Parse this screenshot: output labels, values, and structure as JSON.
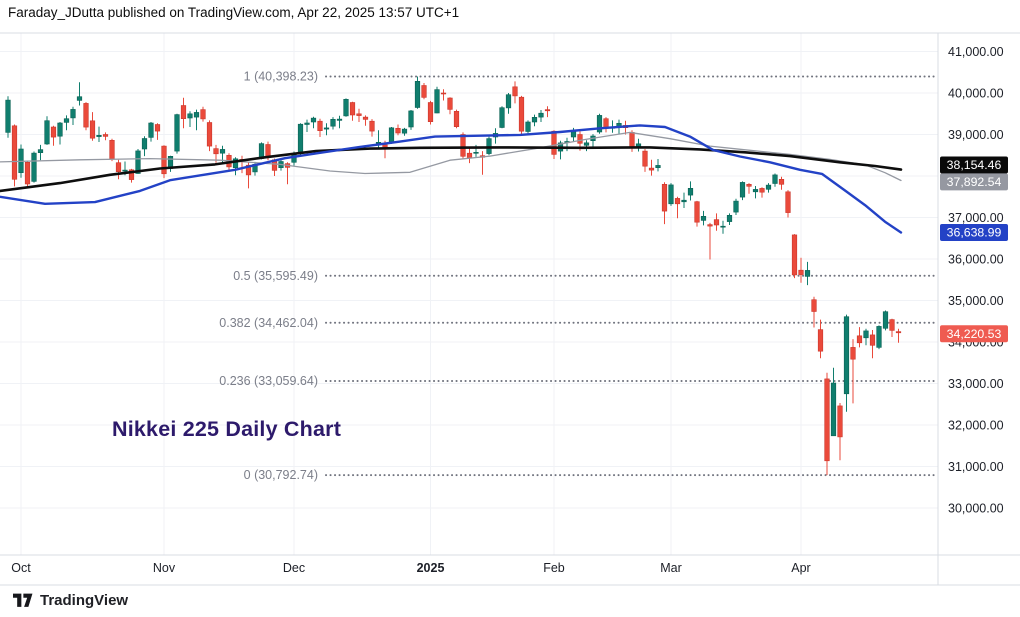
{
  "header": {
    "title": "Faraday_JDutta published on TradingView.com, Apr 22, 2025 13:57 UTC+1"
  },
  "annotation": {
    "title": "Nikkei 225 Daily Chart",
    "color": "#2d1a6b"
  },
  "footer": {
    "brand": "TradingView"
  },
  "chart_data": {
    "type": "candlestick",
    "title": "Nikkei 225 Daily Chart",
    "last_close": 34220.53,
    "axis": {
      "price_ticks": [
        {
          "value": 41000,
          "label": "41,000.00"
        },
        {
          "value": 40000,
          "label": "40,000.00"
        },
        {
          "value": 39000,
          "label": "39,000.00"
        },
        {
          "value": 38000,
          "label": "38,000.00"
        },
        {
          "value": 37000,
          "label": "37,000.00"
        },
        {
          "value": 36000,
          "label": "36,000.00"
        },
        {
          "value": 35000,
          "label": "35,000.00"
        },
        {
          "value": 34000,
          "label": "34,000.00"
        },
        {
          "value": 33000,
          "label": "33,000.00"
        },
        {
          "value": 32000,
          "label": "32,000.00"
        },
        {
          "value": 31000,
          "label": "31,000.00"
        },
        {
          "value": 30000,
          "label": "30,000.00"
        }
      ],
      "time_ticks": [
        {
          "label": "Oct",
          "index": 2,
          "bold": false
        },
        {
          "label": "Nov",
          "index": 24,
          "bold": false
        },
        {
          "label": "Dec",
          "index": 44,
          "bold": false
        },
        {
          "label": "2025",
          "index": 65,
          "bold": true
        },
        {
          "label": "Feb",
          "index": 84,
          "bold": false
        },
        {
          "label": "Mar",
          "index": 102,
          "bold": false
        },
        {
          "label": "Apr",
          "index": 122,
          "bold": false
        }
      ]
    },
    "fib_levels": [
      {
        "label": "1 (40,398.23)",
        "value": 40398.23
      },
      {
        "label": "0.5 (35,595.49)",
        "value": 35595.49
      },
      {
        "label": "0.382 (34,462.04)",
        "value": 34462.04
      },
      {
        "label": "0.236 (33,059.64)",
        "value": 33059.64
      },
      {
        "label": "0 (30,792.74)",
        "value": 30792.74
      }
    ],
    "badges": [
      {
        "label": "38,154.46",
        "value": 38154.46,
        "bg": "#0a0a0a"
      },
      {
        "label": "37,892.54",
        "value": 37892.54,
        "bg": "#9598a1"
      },
      {
        "label": "36,638.99",
        "value": 36638.99,
        "bg": "#2342c6"
      },
      {
        "label": "34,220.53",
        "value": 34220.53,
        "bg": "#ef5b51"
      }
    ],
    "moving_averages": [
      {
        "name": "sma-gray",
        "color": "#9599a2",
        "width": 1.3,
        "last_value": 37892.54,
        "points": [
          [
            0,
            38340
          ],
          [
            80,
            38390
          ],
          [
            150,
            38420
          ],
          [
            220,
            38380
          ],
          [
            280,
            38280
          ],
          [
            330,
            38120
          ],
          [
            365,
            38060
          ],
          [
            410,
            38090
          ],
          [
            450,
            38380
          ],
          [
            490,
            38480
          ],
          [
            540,
            38680
          ],
          [
            585,
            38880
          ],
          [
            630,
            39050
          ],
          [
            670,
            38900
          ],
          [
            710,
            38720
          ],
          [
            750,
            38620
          ],
          [
            790,
            38520
          ],
          [
            830,
            38400
          ],
          [
            865,
            38270
          ],
          [
            885,
            38080
          ],
          [
            901,
            37892.54
          ]
        ]
      },
      {
        "name": "sma-black",
        "color": "#0e0e0e",
        "width": 2.6,
        "last_value": 38154.46,
        "points": [
          [
            0,
            37640
          ],
          [
            60,
            37830
          ],
          [
            110,
            38030
          ],
          [
            160,
            38180
          ],
          [
            215,
            38280
          ],
          [
            265,
            38450
          ],
          [
            316,
            38600
          ],
          [
            370,
            38660
          ],
          [
            420,
            38680
          ],
          [
            500,
            38690
          ],
          [
            580,
            38680
          ],
          [
            650,
            38690
          ],
          [
            700,
            38640
          ],
          [
            745,
            38570
          ],
          [
            790,
            38480
          ],
          [
            840,
            38330
          ],
          [
            875,
            38240
          ],
          [
            901,
            38154.46
          ]
        ]
      },
      {
        "name": "sma-blue",
        "color": "#2342c6",
        "width": 2.4,
        "last_value": 36638.99,
        "points": [
          [
            0,
            37500
          ],
          [
            45,
            37330
          ],
          [
            95,
            37370
          ],
          [
            140,
            37640
          ],
          [
            170,
            37900
          ],
          [
            235,
            38150
          ],
          [
            285,
            38430
          ],
          [
            320,
            38560
          ],
          [
            360,
            38700
          ],
          [
            400,
            38830
          ],
          [
            435,
            38950
          ],
          [
            480,
            38970
          ],
          [
            520,
            38990
          ],
          [
            560,
            39060
          ],
          [
            600,
            39150
          ],
          [
            640,
            39220
          ],
          [
            665,
            39180
          ],
          [
            690,
            38950
          ],
          [
            713,
            38630
          ],
          [
            740,
            38470
          ],
          [
            770,
            38330
          ],
          [
            800,
            38150
          ],
          [
            822,
            38050
          ],
          [
            845,
            37650
          ],
          [
            865,
            37300
          ],
          [
            885,
            36900
          ],
          [
            901,
            36638.99
          ]
        ]
      }
    ],
    "candles": [
      [
        39050,
        39920,
        38920,
        39829
      ],
      [
        39210,
        39240,
        37750,
        37920
      ],
      [
        38080,
        38760,
        37960,
        38651
      ],
      [
        38330,
        38370,
        37730,
        37808
      ],
      [
        37870,
        38590,
        37840,
        38552
      ],
      [
        38560,
        38750,
        38380,
        38635
      ],
      [
        38770,
        39440,
        38750,
        39332
      ],
      [
        39180,
        39210,
        38730,
        38937
      ],
      [
        38960,
        39300,
        38760,
        39277
      ],
      [
        39290,
        39460,
        39100,
        39380
      ],
      [
        39400,
        39670,
        39230,
        39605
      ],
      [
        39820,
        40257,
        39700,
        39910
      ],
      [
        39750,
        39780,
        39100,
        39180
      ],
      [
        39330,
        39540,
        38850,
        38911
      ],
      [
        38950,
        39190,
        38820,
        38981
      ],
      [
        39000,
        39050,
        38860,
        38954
      ],
      [
        38860,
        38900,
        38360,
        38411
      ],
      [
        38320,
        38390,
        37920,
        38104
      ],
      [
        38130,
        38350,
        38020,
        38143
      ],
      [
        38150,
        38170,
        37840,
        37913
      ],
      [
        38060,
        38650,
        38050,
        38605
      ],
      [
        38650,
        38960,
        38480,
        38903
      ],
      [
        38930,
        39300,
        38830,
        39277
      ],
      [
        39240,
        39270,
        38870,
        39081
      ],
      [
        38720,
        38740,
        37950,
        38053
      ],
      [
        38180,
        38490,
        38100,
        38474
      ],
      [
        38600,
        39500,
        38540,
        39480
      ],
      [
        39700,
        39884,
        39150,
        39381
      ],
      [
        39400,
        39560,
        39180,
        39500
      ],
      [
        39420,
        39600,
        39100,
        39533
      ],
      [
        39600,
        39670,
        39310,
        39376
      ],
      [
        39290,
        39340,
        38600,
        38721
      ],
      [
        38660,
        38750,
        38320,
        38535
      ],
      [
        38550,
        38730,
        38280,
        38642
      ],
      [
        38500,
        38550,
        38120,
        38220
      ],
      [
        38200,
        38450,
        38020,
        38414
      ],
      [
        38400,
        38490,
        38070,
        38352
      ],
      [
        38260,
        38330,
        37700,
        38026
      ],
      [
        38100,
        38340,
        38010,
        38283
      ],
      [
        38420,
        38810,
        38400,
        38780
      ],
      [
        38760,
        38830,
        38380,
        38442
      ],
      [
        38390,
        38420,
        38000,
        38134
      ],
      [
        38200,
        38420,
        38130,
        38349
      ],
      [
        38300,
        38330,
        37800,
        38208
      ],
      [
        38330,
        38590,
        38250,
        38513
      ],
      [
        38580,
        39270,
        38480,
        39248
      ],
      [
        39240,
        39360,
        39060,
        39276
      ],
      [
        39300,
        39430,
        39150,
        39395
      ],
      [
        39320,
        39380,
        38940,
        39091
      ],
      [
        39130,
        39270,
        38980,
        39160
      ],
      [
        39200,
        39420,
        39120,
        39367
      ],
      [
        39340,
        39450,
        39150,
        39372
      ],
      [
        39450,
        39870,
        39430,
        39849
      ],
      [
        39770,
        39790,
        39330,
        39470
      ],
      [
        39500,
        39620,
        39300,
        39457
      ],
      [
        39420,
        39460,
        39210,
        39364
      ],
      [
        39320,
        39370,
        38950,
        39081
      ],
      [
        38800,
        39100,
        38660,
        38813
      ],
      [
        38750,
        38850,
        38430,
        38701
      ],
      [
        38800,
        39180,
        38770,
        39161
      ],
      [
        39150,
        39240,
        38980,
        39036
      ],
      [
        39030,
        39160,
        38970,
        39130
      ],
      [
        39180,
        39590,
        39110,
        39568
      ],
      [
        39650,
        40398.23,
        39620,
        40281
      ],
      [
        40180,
        40240,
        39850,
        39894
      ],
      [
        39770,
        39810,
        39240,
        39307
      ],
      [
        39520,
        40150,
        39510,
        40083
      ],
      [
        40000,
        40090,
        39820,
        39981
      ],
      [
        39880,
        39900,
        39490,
        39605
      ],
      [
        39560,
        39600,
        39150,
        39190
      ],
      [
        39000,
        39050,
        38400,
        38474
      ],
      [
        38550,
        38670,
        38310,
        38444
      ],
      [
        38550,
        38750,
        38460,
        38572
      ],
      [
        38490,
        38600,
        38030,
        38451
      ],
      [
        38540,
        38950,
        38500,
        38902
      ],
      [
        38940,
        39150,
        38780,
        39027
      ],
      [
        39170,
        39680,
        39150,
        39646
      ],
      [
        39640,
        40000,
        39500,
        39958
      ],
      [
        40150,
        40279,
        39750,
        39931
      ],
      [
        39900,
        39930,
        39000,
        39080
      ],
      [
        39070,
        39340,
        39020,
        39300
      ],
      [
        39300,
        39480,
        39200,
        39414
      ],
      [
        39420,
        39590,
        39300,
        39513
      ],
      [
        39600,
        39680,
        39420,
        39572
      ],
      [
        39080,
        39100,
        38410,
        38520
      ],
      [
        38600,
        38850,
        38400,
        38798
      ],
      [
        38830,
        38920,
        38600,
        38831
      ],
      [
        38940,
        39160,
        38820,
        39066
      ],
      [
        39000,
        39080,
        38610,
        38787
      ],
      [
        38740,
        38860,
        38600,
        38801
      ],
      [
        38850,
        39010,
        38710,
        38963
      ],
      [
        39060,
        39500,
        39020,
        39461
      ],
      [
        39380,
        39420,
        39050,
        39149
      ],
      [
        39150,
        39340,
        39040,
        39174
      ],
      [
        39190,
        39360,
        39000,
        39270
      ],
      [
        39220,
        39330,
        39000,
        39164
      ],
      [
        39050,
        39100,
        38580,
        38678
      ],
      [
        38710,
        38900,
        38590,
        38776
      ],
      [
        38600,
        38650,
        38100,
        38237
      ],
      [
        38190,
        38390,
        38010,
        38142
      ],
      [
        38200,
        38410,
        38110,
        38256
      ],
      [
        37800,
        37850,
        36840,
        37155
      ],
      [
        37330,
        37830,
        37280,
        37785
      ],
      [
        37460,
        37500,
        36980,
        37331
      ],
      [
        37380,
        37600,
        37230,
        37418
      ],
      [
        37540,
        37870,
        37410,
        37704
      ],
      [
        37380,
        37400,
        36780,
        36887
      ],
      [
        36930,
        37160,
        36810,
        37028
      ],
      [
        36830,
        36870,
        35987,
        36793
      ],
      [
        36950,
        37100,
        36680,
        36819
      ],
      [
        36780,
        36920,
        36610,
        36790
      ],
      [
        36900,
        37100,
        36820,
        37053
      ],
      [
        37130,
        37450,
        37060,
        37396
      ],
      [
        37490,
        37870,
        37420,
        37845
      ],
      [
        37800,
        37830,
        37570,
        37751
      ],
      [
        37620,
        37760,
        37460,
        37677
      ],
      [
        37700,
        37730,
        37480,
        37608
      ],
      [
        37680,
        37830,
        37600,
        37780
      ],
      [
        37820,
        38060,
        37740,
        38027
      ],
      [
        37920,
        37980,
        37670,
        37799
      ],
      [
        37620,
        37660,
        37000,
        37120
      ],
      [
        36580,
        36600,
        35540,
        35617
      ],
      [
        35730,
        36030,
        35430,
        35624
      ],
      [
        35580,
        35930,
        35370,
        35725
      ],
      [
        35020,
        35090,
        34350,
        34735
      ],
      [
        34300,
        34540,
        33610,
        33780
      ],
      [
        33110,
        33260,
        30792.74,
        31136.58
      ],
      [
        31740,
        33380,
        31740,
        33012
      ],
      [
        32460,
        32530,
        31150,
        31714
      ],
      [
        32750,
        34660,
        32320,
        34609
      ],
      [
        33870,
        34070,
        32520,
        33585
      ],
      [
        34150,
        34360,
        33870,
        33982
      ],
      [
        34100,
        34320,
        33920,
        34267
      ],
      [
        34170,
        34290,
        33610,
        33920
      ],
      [
        33870,
        34400,
        33830,
        34377
      ],
      [
        34330,
        34760,
        34280,
        34730
      ],
      [
        34540,
        34560,
        34120,
        34279
      ],
      [
        34250,
        34320,
        33980,
        34220.53
      ]
    ],
    "colors": {
      "up": "#107e6e",
      "up_dark": "#0b6355",
      "down": "#ea4a3b",
      "down_dark": "#cc372c",
      "grid": "#f0f2f6",
      "border": "#d9dce3",
      "fib": "#70737e",
      "fib_label": "#7b7e89",
      "tick": "#1c1f27",
      "badge_text": "#ffffff"
    }
  }
}
